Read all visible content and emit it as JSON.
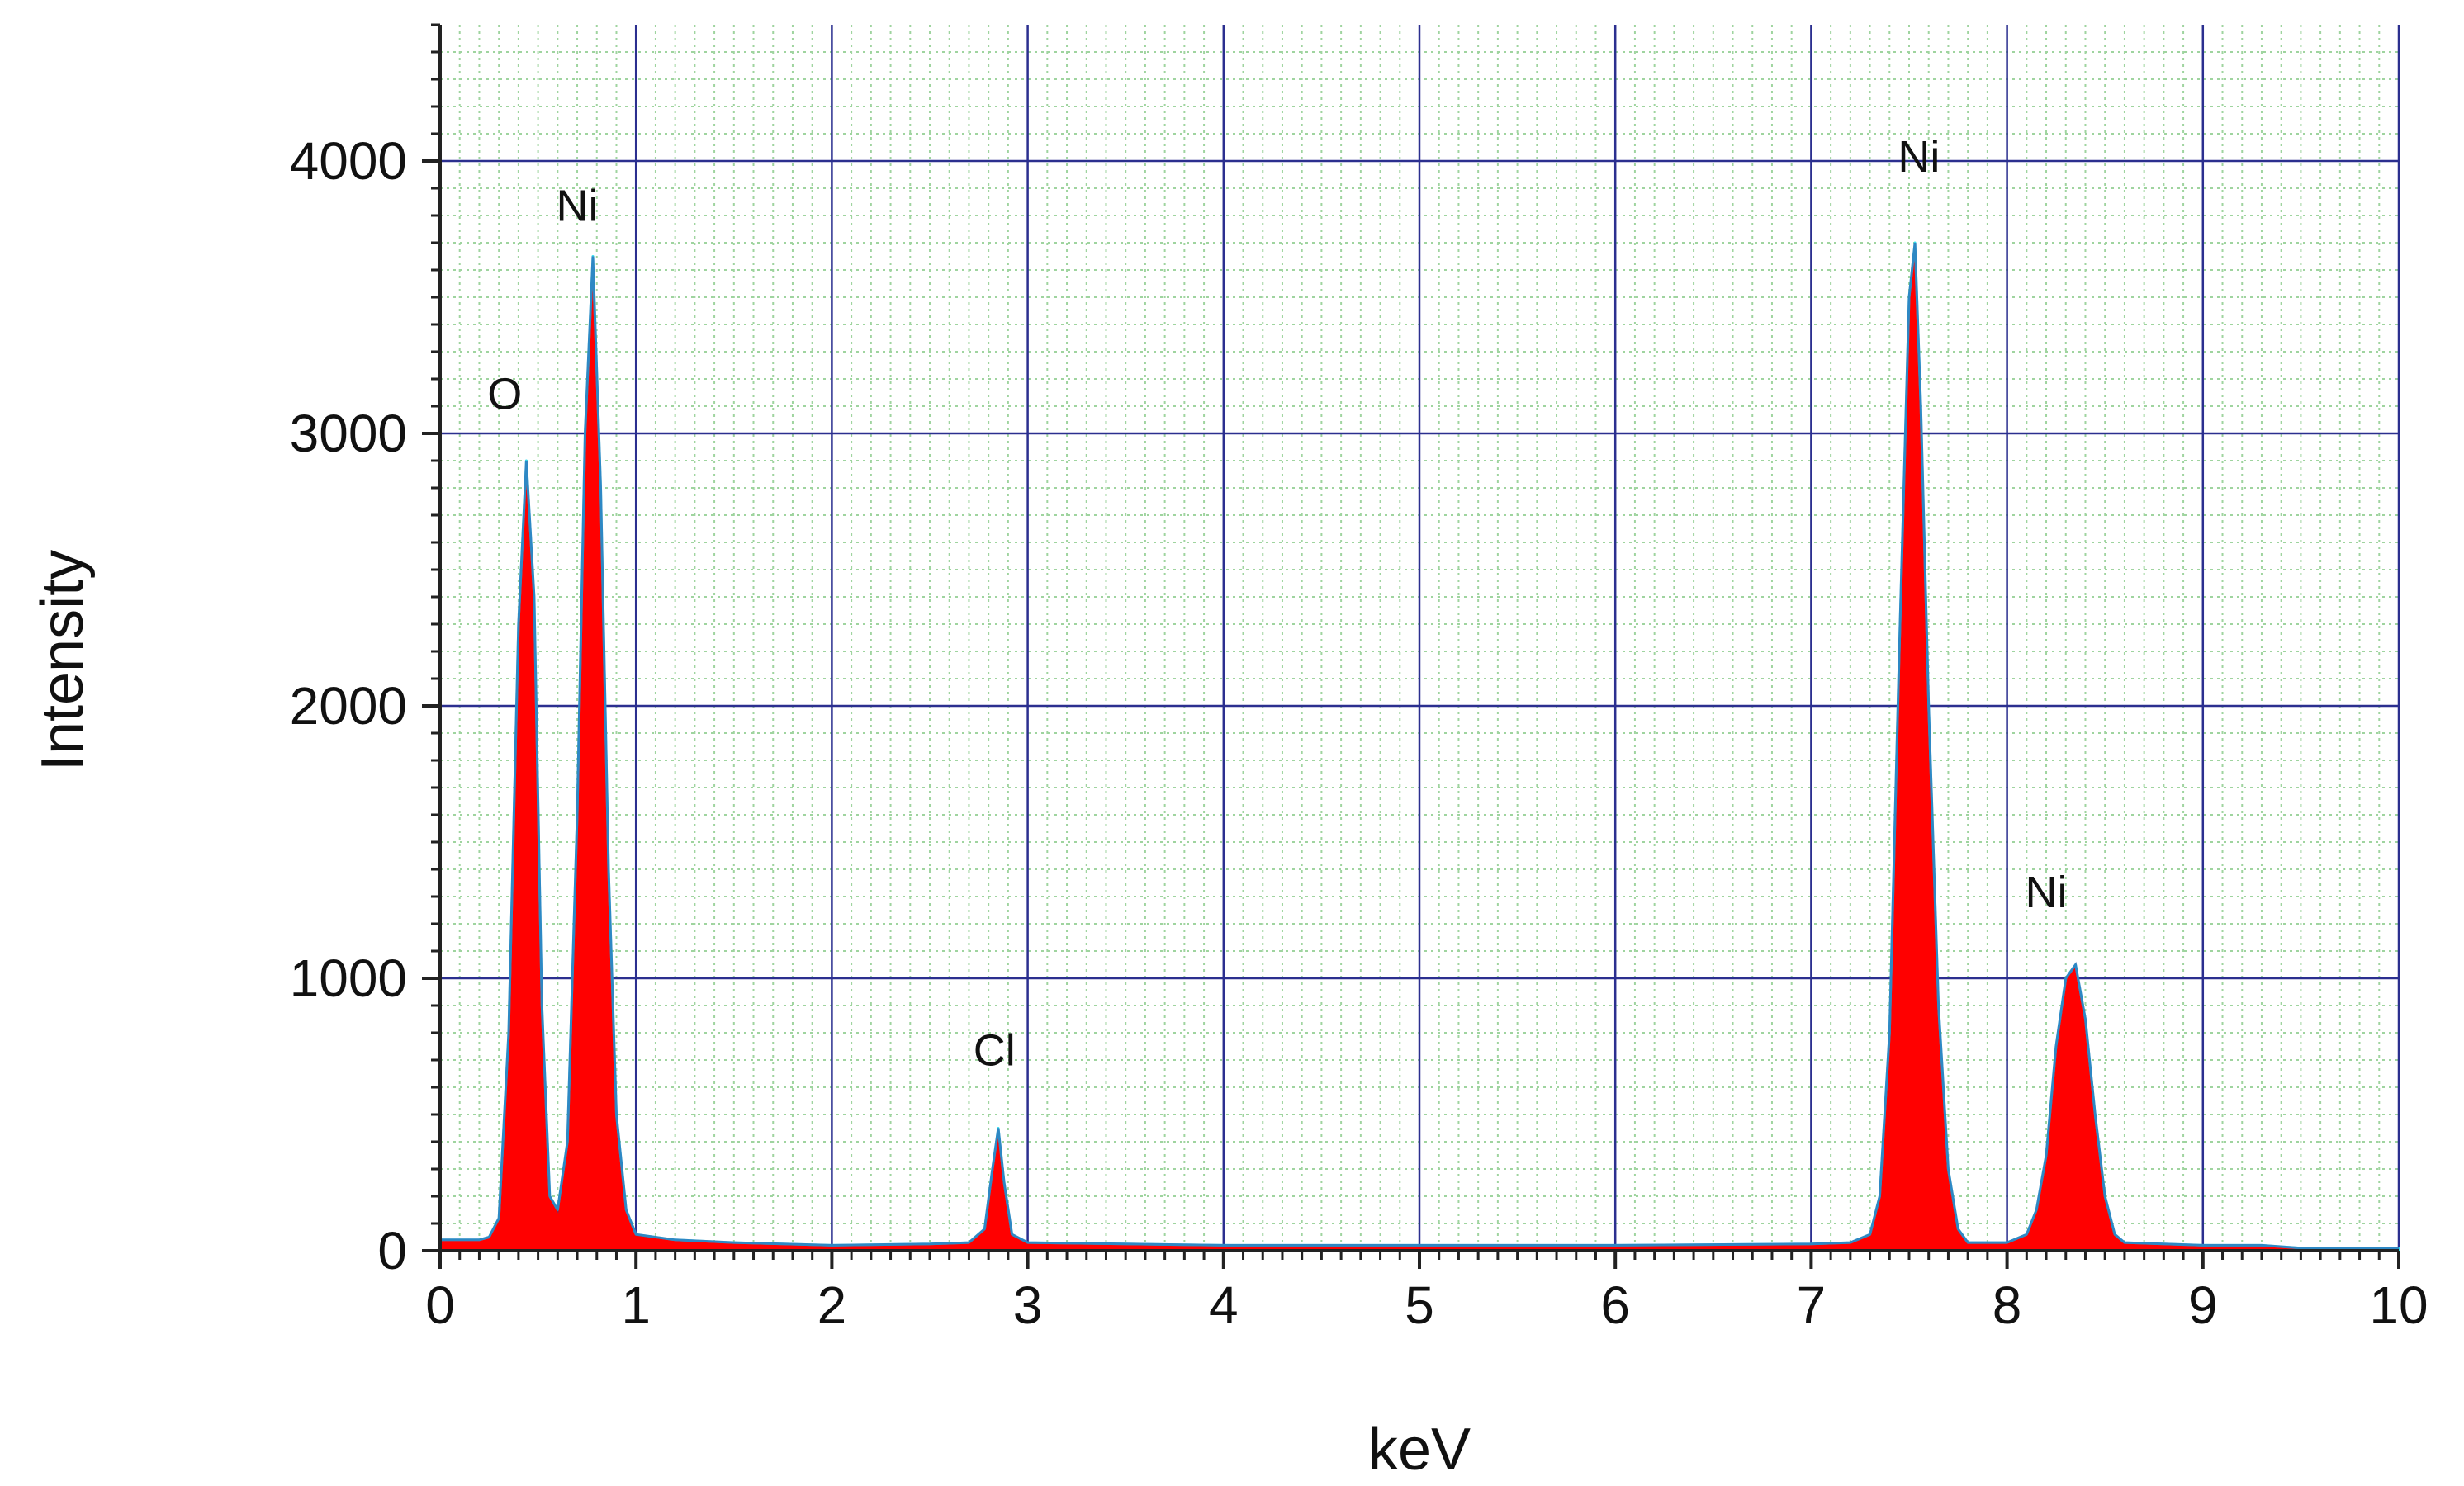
{
  "chart_data": {
    "type": "area",
    "title": "",
    "xlabel": "keV",
    "ylabel": "Intensity",
    "xlim": [
      0,
      10
    ],
    "ylim": [
      0,
      4500
    ],
    "xticks": [
      0,
      1,
      2,
      3,
      4,
      5,
      6,
      7,
      8,
      9,
      10
    ],
    "yticks": [
      0,
      1000,
      2000,
      3000,
      4000
    ],
    "xtick_labels": [
      "0",
      "1",
      "2",
      "3",
      "4",
      "5",
      "6",
      "7",
      "8",
      "9",
      "10"
    ],
    "ytick_labels": [
      "0",
      "1000",
      "2000",
      "3000",
      "4000"
    ],
    "grid": true,
    "colors": {
      "fill": "#ff0000",
      "outline": "#33e0f0",
      "major_grid": "#2b2f8f",
      "minor_grid": "#9fd49f",
      "baseline": "#2a3fa0"
    },
    "series": [
      {
        "x": [
          0.0,
          0.2,
          0.25,
          0.3,
          0.35,
          0.4,
          0.44,
          0.48,
          0.52,
          0.56,
          0.6,
          0.65,
          0.7,
          0.74,
          0.78,
          0.82,
          0.86,
          0.9,
          0.95,
          1.0,
          1.2,
          1.5,
          2.0,
          2.5,
          2.7,
          2.78,
          2.82,
          2.85,
          2.88,
          2.92,
          3.0,
          3.5,
          4.0,
          5.0,
          6.0,
          7.0,
          7.2,
          7.3,
          7.35,
          7.4,
          7.45,
          7.5,
          7.53,
          7.56,
          7.6,
          7.65,
          7.7,
          7.75,
          7.8,
          8.0,
          8.1,
          8.15,
          8.2,
          8.25,
          8.3,
          8.35,
          8.4,
          8.45,
          8.5,
          8.55,
          8.6,
          9.0,
          9.3,
          9.5,
          10.0
        ],
        "y": [
          40,
          40,
          50,
          120,
          800,
          2300,
          2900,
          2400,
          900,
          200,
          150,
          400,
          1600,
          3000,
          3650,
          2800,
          1400,
          500,
          150,
          60,
          40,
          30,
          20,
          25,
          30,
          80,
          300,
          450,
          250,
          60,
          30,
          25,
          20,
          20,
          20,
          25,
          30,
          60,
          200,
          800,
          2200,
          3500,
          3700,
          3100,
          2000,
          900,
          300,
          80,
          30,
          30,
          60,
          150,
          350,
          750,
          1000,
          1050,
          850,
          500,
          200,
          60,
          30,
          20,
          20,
          10,
          10
        ]
      }
    ],
    "annotations": [
      {
        "text": "O",
        "x": 0.33,
        "y": 3090
      },
      {
        "text": "Ni",
        "x": 0.7,
        "y": 3780
      },
      {
        "text": "Cl",
        "x": 2.83,
        "y": 680
      },
      {
        "text": "Ni",
        "x": 7.55,
        "y": 3960
      },
      {
        "text": "Ni",
        "x": 8.2,
        "y": 1260
      }
    ]
  }
}
